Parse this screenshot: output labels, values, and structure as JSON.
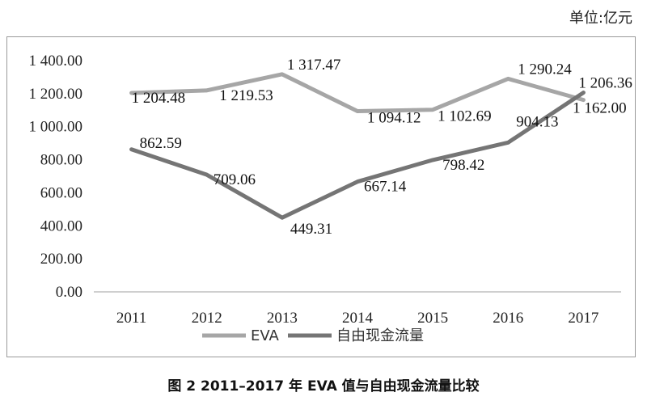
{
  "unit_label": "单位:亿元",
  "caption": "图 2  2011–2017 年 EVA 值与自由现金流量比较",
  "colors": {
    "EVA": "#a6a6a6",
    "FCF": "#757575",
    "axis": "#bfbfbf"
  },
  "chart_data": {
    "type": "line",
    "title": "",
    "xlabel": "",
    "ylabel": "",
    "categories": [
      "2011",
      "2012",
      "2013",
      "2014",
      "2015",
      "2016",
      "2017"
    ],
    "ylim": [
      0,
      1400
    ],
    "yticks": [
      0,
      200,
      400,
      600,
      800,
      1000,
      1200,
      1400
    ],
    "ytick_labels": [
      "0.00",
      "200.00",
      "400.00",
      "600.00",
      "800.00",
      "1 000.00",
      "1 200.00",
      "1 400.00"
    ],
    "grid": false,
    "legend_position": "bottom",
    "series": [
      {
        "name": "EVA",
        "values": [
          1204.48,
          1219.53,
          1317.47,
          1094.12,
          1102.69,
          1290.24,
          1162.0
        ],
        "labels": [
          "1 204.48",
          "1 219.53",
          "1 317.47",
          "1 094.12",
          "1 102.69",
          "1 290.24",
          "1 162.00"
        ]
      },
      {
        "name": "自由现金流量",
        "values": [
          862.59,
          709.06,
          449.31,
          667.14,
          798.42,
          904.13,
          1206.36
        ],
        "labels": [
          "862.59",
          "709.06",
          "449.31",
          "667.14",
          "798.42",
          "904.13",
          "1 206.36"
        ]
      }
    ]
  }
}
